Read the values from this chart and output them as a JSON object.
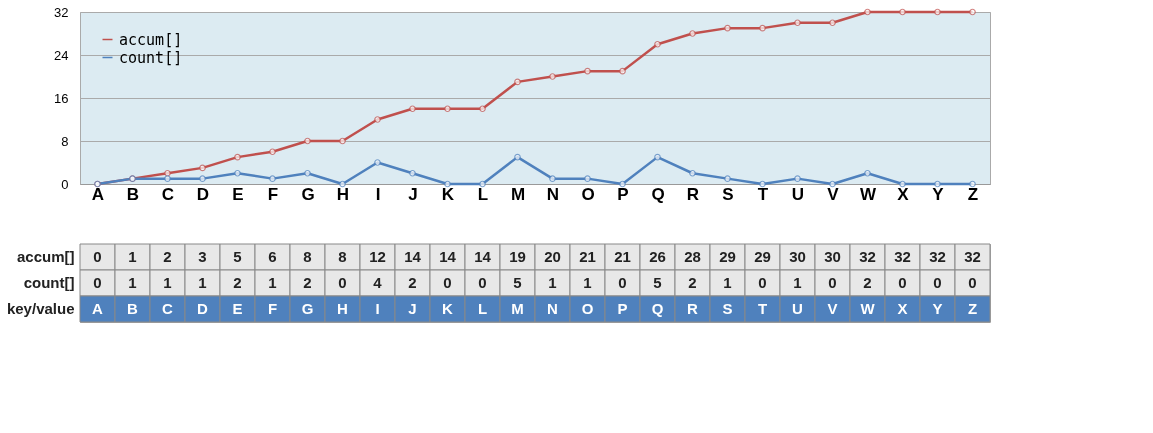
{
  "chart_data": {
    "type": "line",
    "categories": [
      "A",
      "B",
      "C",
      "D",
      "E",
      "F",
      "G",
      "H",
      "I",
      "J",
      "K",
      "L",
      "M",
      "N",
      "O",
      "P",
      "Q",
      "R",
      "S",
      "T",
      "U",
      "V",
      "W",
      "X",
      "Y",
      "Z"
    ],
    "series": [
      {
        "name": "accum[]",
        "color": "#c0504d",
        "values": [
          0,
          1,
          2,
          3,
          5,
          6,
          8,
          8,
          12,
          14,
          14,
          14,
          19,
          20,
          21,
          21,
          26,
          28,
          29,
          29,
          30,
          30,
          32,
          32,
          32,
          32
        ]
      },
      {
        "name": "count[]",
        "color": "#4f81bd",
        "values": [
          0,
          1,
          1,
          1,
          2,
          1,
          2,
          0,
          4,
          2,
          0,
          0,
          5,
          1,
          1,
          0,
          5,
          2,
          1,
          0,
          1,
          0,
          2,
          0,
          0,
          0
        ]
      }
    ],
    "ylim": [
      0,
      32
    ],
    "yticks": [
      0,
      8,
      16,
      24,
      32
    ],
    "grid": "y",
    "legend": "top left",
    "marker": "circle",
    "line_style": "solid",
    "data_labels": true,
    "annotations": [
      "key/value"
    ]
  }
}
